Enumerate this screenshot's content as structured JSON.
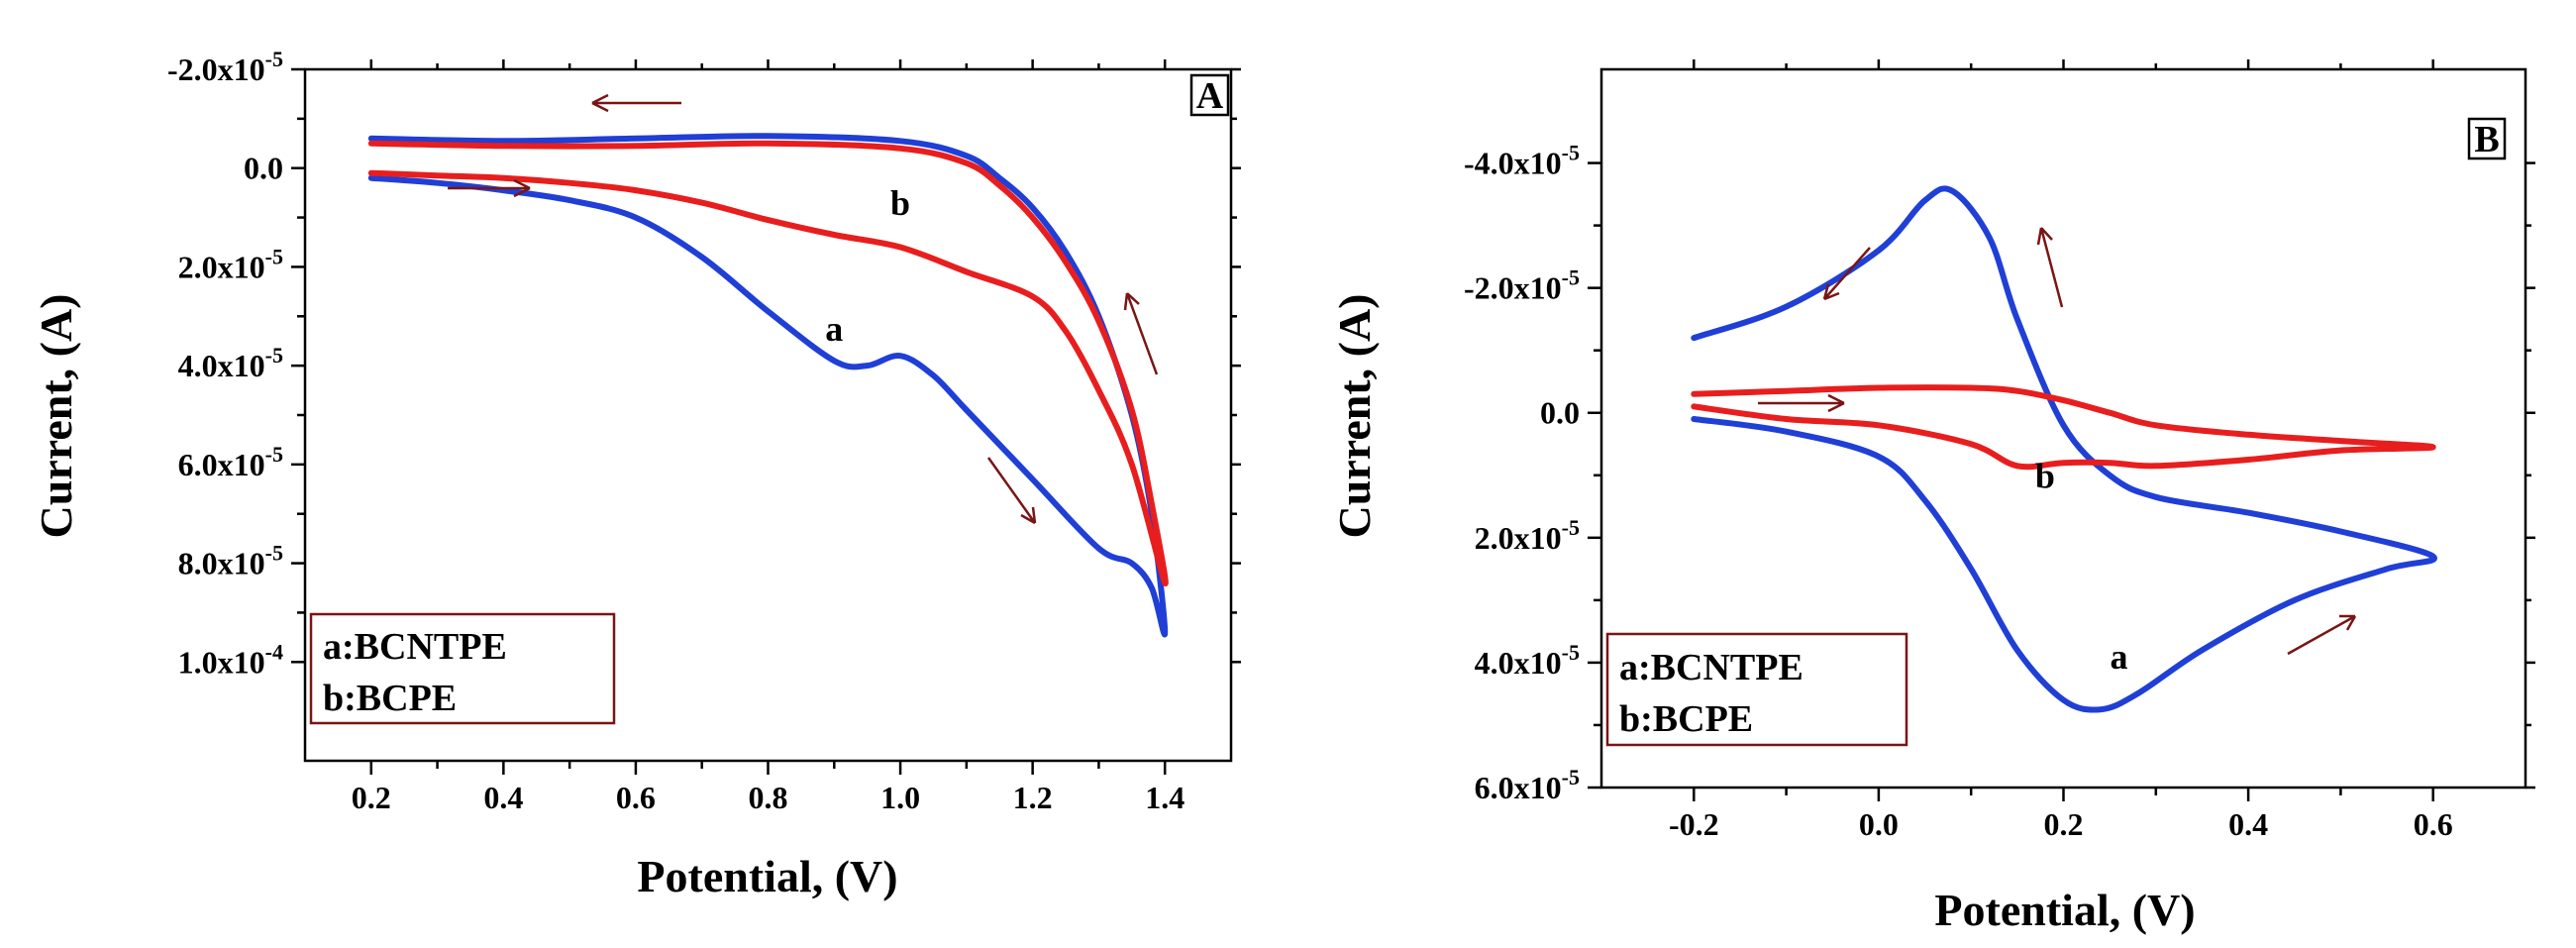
{
  "chart_data": [
    {
      "type": "line",
      "panel": "A",
      "xlabel": "Potential, (V)",
      "ylabel": "Current, (A)",
      "xlim": [
        0.1,
        1.5
      ],
      "ylim": [
        0.00012,
        -2e-05
      ],
      "y_inverted": true,
      "x_ticks": [
        "0.2",
        "0.4",
        "0.6",
        "0.8",
        "1.0",
        "1.2",
        "1.4"
      ],
      "x_tick_values": [
        0.2,
        0.4,
        0.6,
        0.8,
        1.0,
        1.2,
        1.4
      ],
      "y_ticks": [
        {
          "value": -2e-05,
          "mantissa": "-2.0x10",
          "exp": "-5"
        },
        {
          "value": 0,
          "mantissa": "0.0",
          "exp": ""
        },
        {
          "value": 2e-05,
          "mantissa": "2.0x10",
          "exp": "-5"
        },
        {
          "value": 4e-05,
          "mantissa": "4.0x10",
          "exp": "-5"
        },
        {
          "value": 6e-05,
          "mantissa": "6.0x10",
          "exp": "-5"
        },
        {
          "value": 8e-05,
          "mantissa": "8.0x10",
          "exp": "-5"
        },
        {
          "value": 0.0001,
          "mantissa": "1.0x10",
          "exp": "-4"
        }
      ],
      "legend": {
        "position": "bottom-left",
        "entries": [
          "a:BCNTPE",
          "b:BCPE"
        ]
      },
      "series": [
        {
          "name": "a",
          "color": "#1f3fd6",
          "x": [
            0.2,
            0.3,
            0.4,
            0.5,
            0.6,
            0.7,
            0.8,
            0.9,
            0.95,
            1.0,
            1.05,
            1.1,
            1.2,
            1.3,
            1.35,
            1.38,
            1.4,
            1.38,
            1.35,
            1.3,
            1.25,
            1.2,
            1.15,
            1.1,
            1.0,
            0.8,
            0.6,
            0.4,
            0.2
          ],
          "y": [
            2e-06,
            3e-06,
            4.5e-06,
            6.5e-06,
            1e-05,
            1.8e-05,
            2.9e-05,
            3.9e-05,
            4e-05,
            3.8e-05,
            4.2e-05,
            4.9e-05,
            6.3e-05,
            7.7e-05,
            8e-05,
            8.5e-05,
            9.4e-05,
            7e-05,
            5e-05,
            3e-05,
            1.7e-05,
            8e-06,
            2e-06,
            -2.5e-06,
            -5.5e-06,
            -6.5e-06,
            -6e-06,
            -5.5e-06,
            -6e-06
          ]
        },
        {
          "name": "b",
          "color": "#e81e1e",
          "x": [
            0.2,
            0.3,
            0.4,
            0.5,
            0.6,
            0.7,
            0.8,
            0.9,
            1.0,
            1.1,
            1.2,
            1.25,
            1.3,
            1.35,
            1.4,
            1.38,
            1.35,
            1.3,
            1.25,
            1.2,
            1.15,
            1.1,
            1.0,
            0.8,
            0.6,
            0.4,
            0.2
          ],
          "y": [
            1e-06,
            1.5e-06,
            2e-06,
            3e-06,
            4.5e-06,
            7e-06,
            1.05e-05,
            1.35e-05,
            1.6e-05,
            2.1e-05,
            2.6e-05,
            3.3e-05,
            4.5e-05,
            6e-05,
            8.4e-05,
            6.8e-05,
            4.9e-05,
            3.1e-05,
            1.9e-05,
            1e-05,
            3.5e-06,
            -1e-06,
            -4e-06,
            -5e-06,
            -4.5e-06,
            -4.5e-06,
            -5e-06
          ]
        }
      ],
      "annotations": [
        {
          "text": "a",
          "x": 0.9,
          "y": 3.5e-05
        },
        {
          "text": "b",
          "x": 1.0,
          "y": 9.5e-06
        }
      ]
    },
    {
      "type": "line",
      "panel": "B",
      "xlabel": "Potential, (V)",
      "ylabel": "Current, (A)",
      "xlim": [
        -0.3,
        0.7
      ],
      "ylim": [
        6e-05,
        -5.5e-05
      ],
      "y_inverted": true,
      "x_ticks": [
        "-0.2",
        "0.0",
        "0.2",
        "0.4",
        "0.6"
      ],
      "x_tick_values": [
        -0.2,
        0.0,
        0.2,
        0.4,
        0.6
      ],
      "y_ticks": [
        {
          "value": -4e-05,
          "mantissa": "-4.0x10",
          "exp": "-5"
        },
        {
          "value": -2e-05,
          "mantissa": "-2.0x10",
          "exp": "-5"
        },
        {
          "value": 0,
          "mantissa": "0.0",
          "exp": ""
        },
        {
          "value": 2e-05,
          "mantissa": "2.0x10",
          "exp": "-5"
        },
        {
          "value": 4e-05,
          "mantissa": "4.0x10",
          "exp": "-5"
        },
        {
          "value": 6e-05,
          "mantissa": "6.0x10",
          "exp": "-5"
        }
      ],
      "legend": {
        "position": "bottom-left",
        "entries": [
          "a:BCNTPE",
          "b:BCPE"
        ]
      },
      "series": [
        {
          "name": "a",
          "color": "#1f3fd6",
          "x": [
            -0.2,
            -0.1,
            0.0,
            0.05,
            0.1,
            0.15,
            0.2,
            0.24,
            0.28,
            0.35,
            0.45,
            0.55,
            0.6,
            0.5,
            0.4,
            0.3,
            0.25,
            0.2,
            0.15,
            0.12,
            0.08,
            0.05,
            0.0,
            -0.1,
            -0.2
          ],
          "y": [
            1e-06,
            3e-06,
            7e-06,
            1.4e-05,
            2.5e-05,
            3.8e-05,
            4.6e-05,
            4.75e-05,
            4.5e-05,
            3.8e-05,
            3e-05,
            2.5e-05,
            2.3e-05,
            1.9e-05,
            1.6e-05,
            1.35e-05,
            1e-05,
            2e-06,
            -1.5e-05,
            -2.8e-05,
            -3.55e-05,
            -3.4e-05,
            -2.6e-05,
            -1.7e-05,
            -1.2e-05
          ]
        },
        {
          "name": "b",
          "color": "#e81e1e",
          "x": [
            -0.2,
            -0.1,
            0.0,
            0.1,
            0.15,
            0.2,
            0.25,
            0.3,
            0.4,
            0.5,
            0.6,
            0.5,
            0.4,
            0.3,
            0.25,
            0.2,
            0.15,
            0.1,
            0.0,
            -0.1,
            -0.2
          ],
          "y": [
            -1e-06,
            1e-06,
            2e-06,
            5e-06,
            8.5e-06,
            8e-06,
            8e-06,
            8.5e-06,
            7.5e-06,
            6e-06,
            5.5e-06,
            4.5e-06,
            3.5e-06,
            2e-06,
            0.0,
            -2e-06,
            -3.5e-06,
            -4e-06,
            -4e-06,
            -3.5e-06,
            -3e-06
          ]
        }
      ],
      "annotations": [
        {
          "text": "a",
          "x": 0.26,
          "y": 4.1e-05
        },
        {
          "text": "b",
          "x": 0.18,
          "y": 1.2e-05
        }
      ]
    }
  ]
}
